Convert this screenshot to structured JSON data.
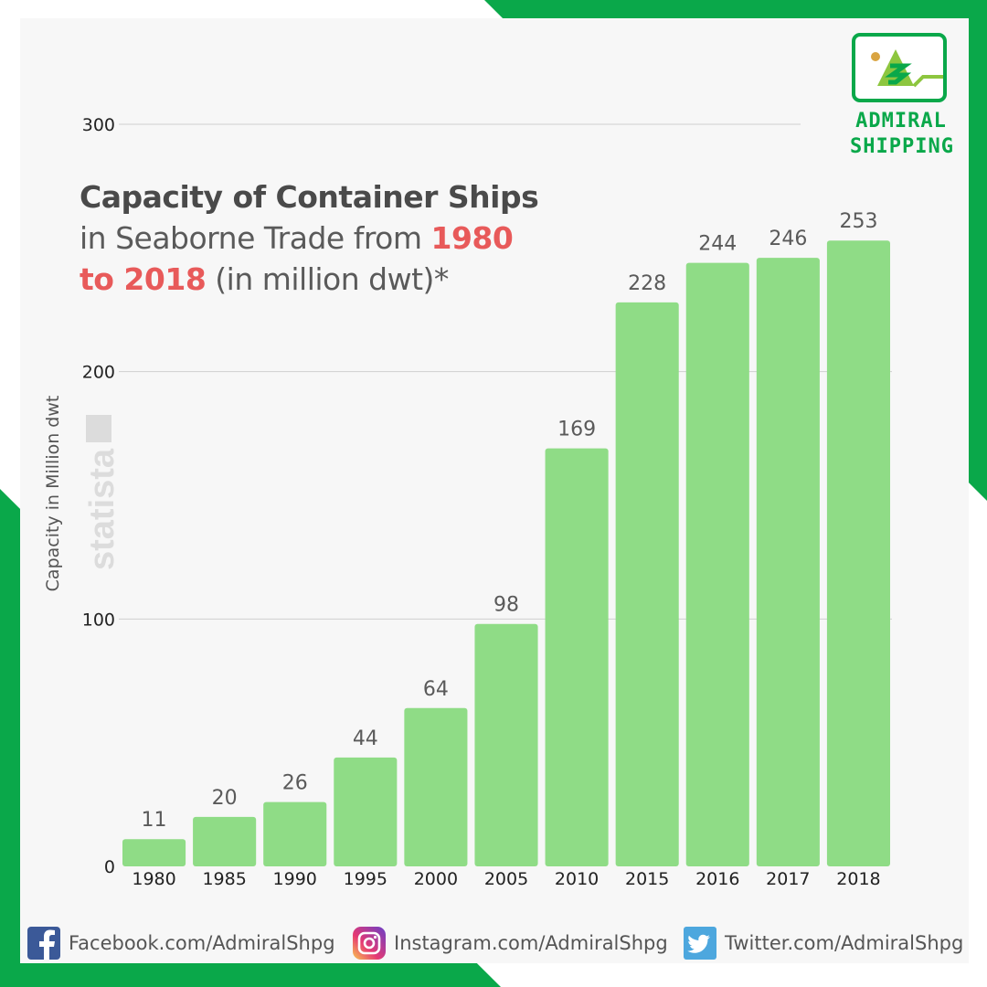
{
  "brand": {
    "name_line1": "ADMIRAL",
    "name_line2": "SHIPPING"
  },
  "title_parts": {
    "bold": "Capacity of Container Ships",
    "normal1": " in Seaborne Trade from ",
    "red": "1980 to 2018",
    "normal2": " (in million dwt)*"
  },
  "watermark": "statista",
  "colors": {
    "bar": "#8fdc86",
    "accent_green": "#0aa84a",
    "title_red": "#e85a5a",
    "panel": "#f7f7f7"
  },
  "chart_data": {
    "type": "bar",
    "title": "Capacity of Container Ships in Seaborne Trade from 1980 to 2018 (in million dwt)*",
    "ylabel": "Capacity in Million dwt",
    "xlabel": "",
    "categories": [
      "1980",
      "1985",
      "1990",
      "1995",
      "2000",
      "2005",
      "2010",
      "2015",
      "2016",
      "2017",
      "2018"
    ],
    "values": [
      11,
      20,
      26,
      44,
      64,
      98,
      169,
      228,
      244,
      246,
      253
    ],
    "ylim": [
      0,
      300
    ],
    "yticks": [
      0,
      100,
      200,
      300
    ],
    "grid": true,
    "data_labels": true,
    "legend": "none"
  },
  "footer": {
    "facebook": "Facebook.com/AdmiralShpg",
    "instagram": "Instagram.com/AdmiralShpg",
    "twitter": "Twitter.com/AdmiralShpg"
  }
}
